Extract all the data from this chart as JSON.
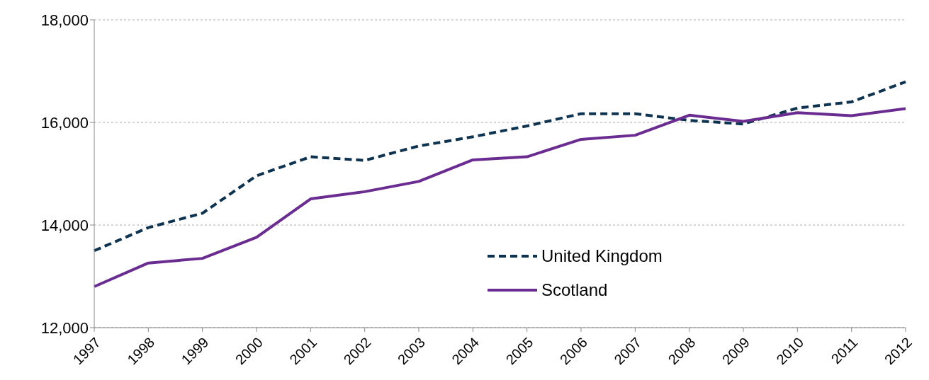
{
  "chart_data": {
    "type": "line",
    "categories": [
      "1997",
      "1998",
      "1999",
      "2000",
      "2001",
      "2002",
      "2003",
      "2004",
      "2005",
      "2006",
      "2007",
      "2008",
      "2009",
      "2010",
      "2011",
      "2012"
    ],
    "series": [
      {
        "name": "United Kingdom",
        "color": "#0e3350",
        "line_style": "dashed",
        "values": [
          13500,
          13950,
          14230,
          14960,
          15330,
          15260,
          15540,
          15720,
          15930,
          16170,
          16170,
          16040,
          15970,
          16280,
          16400,
          16790
        ]
      },
      {
        "name": "Scotland",
        "color": "#6a2c91",
        "line_style": "solid",
        "values": [
          12800,
          13260,
          13350,
          13760,
          14510,
          14650,
          14850,
          15270,
          15330,
          15670,
          15750,
          16140,
          16020,
          16190,
          16130,
          16270
        ]
      }
    ],
    "ylim": [
      12000,
      18000
    ],
    "yticks": [
      {
        "value": 12000,
        "label": "12,000"
      },
      {
        "value": 14000,
        "label": "14,000"
      },
      {
        "value": 16000,
        "label": "16,000"
      },
      {
        "value": 18000,
        "label": "18,000"
      }
    ],
    "grid": "y",
    "legend": "bottom",
    "marker": "none"
  }
}
